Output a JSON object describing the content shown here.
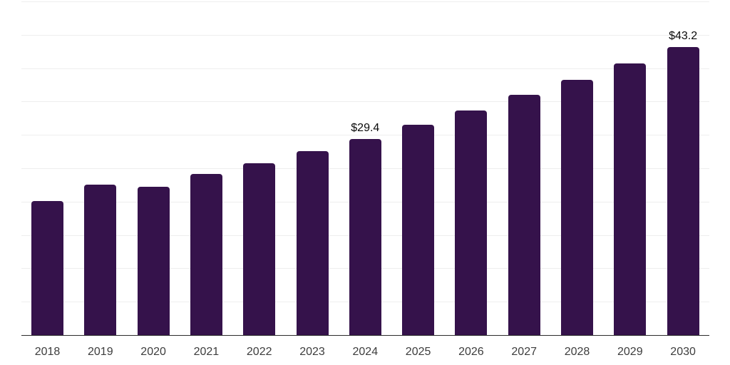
{
  "chart_data": {
    "type": "bar",
    "title": "",
    "xlabel": "",
    "ylabel": "",
    "categories": [
      "2018",
      "2019",
      "2020",
      "2021",
      "2022",
      "2023",
      "2024",
      "2025",
      "2026",
      "2027",
      "2028",
      "2029",
      "2030"
    ],
    "values": [
      20.1,
      22.5,
      22.2,
      24.1,
      25.7,
      27.6,
      29.4,
      31.5,
      33.7,
      36.0,
      38.3,
      40.7,
      43.2
    ],
    "point_labels": {
      "2024": "$29.4",
      "2030": "$43.2"
    },
    "ylim": [
      0,
      50
    ],
    "gridline_step": 5,
    "grid": true,
    "legend": false,
    "colors": {
      "bar": "#35124B",
      "gridline": "#eeeeee",
      "axis": "#2b2b2b",
      "tick_label": "#3d3d3d",
      "value_label": "#0a0a0a",
      "background": "#ffffff"
    }
  }
}
